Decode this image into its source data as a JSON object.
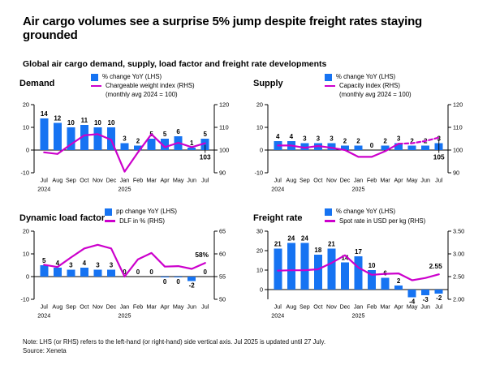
{
  "header": {
    "title": "Air cargo volumes see a surprise 5% jump despite freight rates staying grounded",
    "subtitle": "Global air cargo demand, supply, load factor and freight rate developments"
  },
  "footer": {
    "note": "Note: LHS (or RHS) refers to the left-hand (or right-hand) side vertical axis. Jul 2025 is updated until 27 July.",
    "source": "Source: Xeneta"
  },
  "colors": {
    "bar": "#1673f2",
    "line": "#cc00cc",
    "axis": "#000000"
  },
  "months": [
    "Jul",
    "Aug",
    "Sep",
    "Oct",
    "Nov",
    "Dec",
    "Jan",
    "Feb",
    "Mar",
    "Apr",
    "May",
    "Jun",
    "Jul"
  ],
  "years": [
    {
      "i": 0,
      "t": "2024"
    },
    {
      "i": 6,
      "t": "2025"
    }
  ],
  "chart_data": [
    {
      "id": "demand",
      "type": "bar+line",
      "title": "Demand",
      "legend": [
        {
          "type": "bar",
          "label": "% change YoY (LHS)"
        },
        {
          "type": "line",
          "label": "Chargeable weight index (RHS)",
          "sublabel": "(monthly avg 2024 = 100)"
        }
      ],
      "bars": [
        14,
        12,
        10,
        11,
        10,
        10,
        3,
        2,
        5,
        5,
        6,
        1,
        5
      ],
      "bar_labels": [
        "14",
        "12",
        "10",
        "11",
        "10",
        "10",
        "3",
        "2",
        "5",
        "5",
        "6",
        "1",
        "5"
      ],
      "line": [
        99,
        98.3,
        102.5,
        106.5,
        107,
        104.5,
        90.5,
        99,
        107,
        101.3,
        103.2,
        101.3,
        103
      ],
      "lhs": {
        "min": -10,
        "max": 20,
        "ticks": [
          {
            "v": 20,
            "t": "20"
          },
          {
            "v": 10,
            "t": "10"
          },
          {
            "v": 0,
            "t": "0"
          },
          {
            "v": -10,
            "t": "-10"
          }
        ]
      },
      "rhs": {
        "min": 90,
        "max": 120,
        "ticks": [
          {
            "v": 120,
            "t": "120"
          },
          {
            "v": 110,
            "t": "110"
          },
          {
            "v": 100,
            "t": "100"
          },
          {
            "v": 90,
            "t": "90"
          }
        ]
      },
      "end_label": {
        "text": "103",
        "leader": true
      }
    },
    {
      "id": "supply",
      "type": "bar+line",
      "title": "Supply",
      "legend": [
        {
          "type": "bar",
          "label": "% change YoY (LHS)"
        },
        {
          "type": "line",
          "label": "Capacity index (RHS)",
          "sublabel": "(monthly avg 2024 = 100)"
        }
      ],
      "bars": [
        4,
        4,
        3,
        3,
        3,
        2,
        2,
        0,
        2,
        3,
        2,
        2,
        3
      ],
      "bar_labels": [
        "4",
        "4",
        "3",
        "3",
        "3",
        "2",
        "2",
        "0",
        "2",
        "3",
        "2",
        "2",
        "3"
      ],
      "line": [
        102,
        102,
        101,
        101.8,
        101,
        100,
        97,
        97,
        99.5,
        102.8,
        103,
        104,
        105.5
      ],
      "dash_from_index": 9,
      "lhs": {
        "min": -10,
        "max": 20,
        "ticks": [
          {
            "v": 20,
            "t": "20"
          },
          {
            "v": 10,
            "t": "10"
          },
          {
            "v": 0,
            "t": "0"
          },
          {
            "v": -10,
            "t": "-10"
          }
        ]
      },
      "rhs": {
        "min": 90,
        "max": 120,
        "ticks": [
          {
            "v": 120,
            "t": "120"
          },
          {
            "v": 110,
            "t": "110"
          },
          {
            "v": 100,
            "t": "100"
          },
          {
            "v": 90,
            "t": "90"
          }
        ]
      },
      "end_label": {
        "text": "105",
        "leader": true
      }
    },
    {
      "id": "load-factor",
      "type": "bar+line",
      "title": "Dynamic load factor",
      "legend": [
        {
          "type": "bar",
          "label": "pp change YoY (LHS)"
        },
        {
          "type": "line",
          "label": "DLF in % (RHS)"
        }
      ],
      "bars": [
        5,
        4,
        3,
        4,
        3,
        3,
        0,
        0,
        0,
        0,
        0,
        -2,
        0
      ],
      "bar_labels": [
        "5",
        "4",
        "3",
        "4",
        "3",
        "3",
        "0",
        "0",
        "0",
        "0",
        "0",
        "-2",
        "0"
      ],
      "tiny_negative_indices": [
        9,
        10
      ],
      "labels_below_indices": [
        9,
        10,
        11
      ],
      "line": [
        57.6,
        57.1,
        59.2,
        61.2,
        62,
        61.2,
        55,
        58.8,
        60.2,
        57.2,
        57.3,
        56.7,
        58
      ],
      "lhs": {
        "min": -10,
        "max": 20,
        "ticks": [
          {
            "v": 20,
            "t": "20"
          },
          {
            "v": 10,
            "t": "10"
          },
          {
            "v": 0,
            "t": "0"
          },
          {
            "v": -10,
            "t": "-10"
          }
        ]
      },
      "rhs": {
        "min": 50,
        "max": 65,
        "ticks": [
          {
            "v": 65,
            "t": "65"
          },
          {
            "v": 60,
            "t": "60"
          },
          {
            "v": 55,
            "t": "55"
          },
          {
            "v": 50,
            "t": "50"
          }
        ]
      },
      "end_label": {
        "text": "58%",
        "leader": false
      }
    },
    {
      "id": "freight-rate",
      "type": "bar+line",
      "title": "Freight rate",
      "legend": [
        {
          "type": "bar",
          "label": "% change YoY (LHS)"
        },
        {
          "type": "line",
          "label": "Spot rate in USD per kg (RHS)"
        }
      ],
      "bars": [
        21,
        24,
        24,
        18,
        21,
        14,
        17,
        10,
        6,
        2,
        -4,
        -3,
        -2
      ],
      "bar_labels": [
        "21",
        "24",
        "24",
        "18",
        "21",
        "14",
        "17",
        "10",
        "6",
        "2",
        "-4",
        "-3",
        "-2"
      ],
      "line": [
        2.63,
        2.64,
        2.64,
        2.66,
        2.8,
        2.97,
        2.7,
        2.54,
        2.56,
        2.57,
        2.42,
        2.47,
        2.55
      ],
      "lhs": {
        "min": -5,
        "max": 30,
        "ticks": [
          {
            "v": 30,
            "t": "30"
          },
          {
            "v": 20,
            "t": "20"
          },
          {
            "v": 10,
            "t": "10"
          },
          {
            "v": 0,
            "t": "0"
          }
        ]
      },
      "rhs": {
        "min": 2.0,
        "max": 3.5,
        "ticks": [
          {
            "v": 3.5,
            "t": "3.50"
          },
          {
            "v": 3.0,
            "t": "3.00"
          },
          {
            "v": 2.5,
            "t": "2.50"
          },
          {
            "v": 2.0,
            "t": "2.00"
          }
        ]
      },
      "end_label": {
        "text": "2.55",
        "leader": false
      }
    }
  ]
}
